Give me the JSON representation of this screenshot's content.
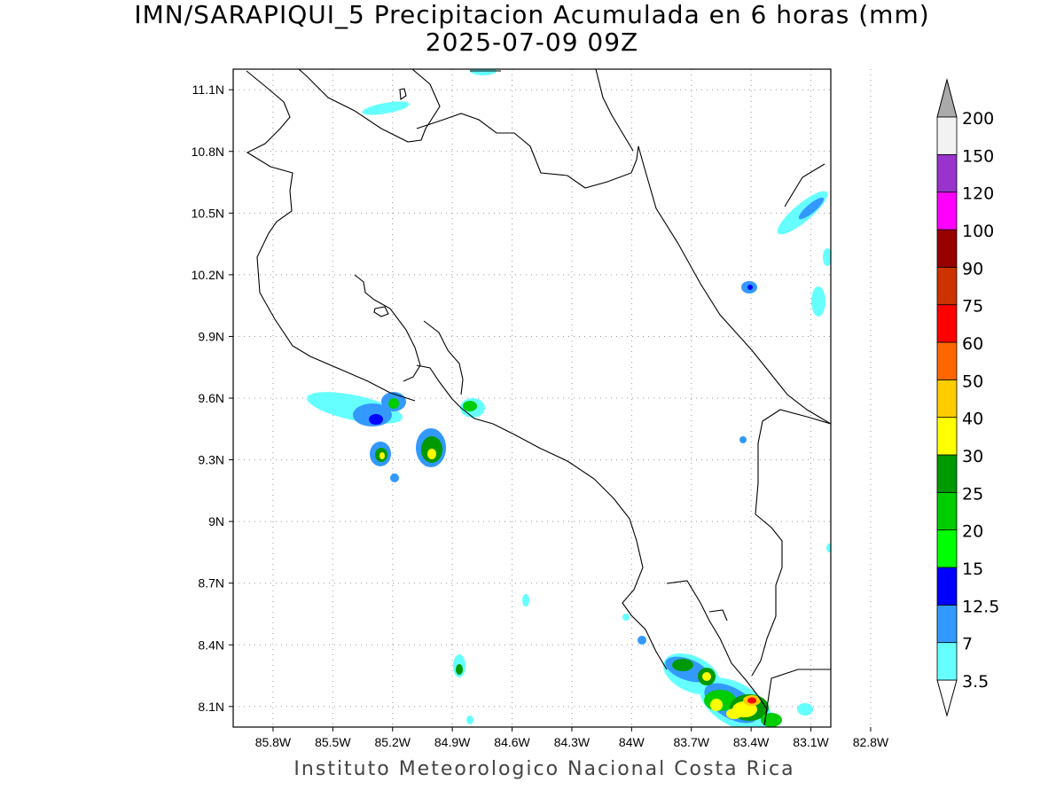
{
  "title": {
    "line1": "IMN/SARAPIQUI_5 Precipitacion Acumulada en 6 horas (mm)",
    "line2": "2025-07-09 09Z"
  },
  "footer": "Instituto Meteorologico Nacional Costa Rica",
  "map": {
    "lon_range": [
      -86.0,
      -83.0
    ],
    "lat_range": [
      8.0,
      11.2
    ],
    "lon_ticks": [
      {
        "value": -85.8,
        "label": "85.8W"
      },
      {
        "value": -85.5,
        "label": "85.5W"
      },
      {
        "value": -85.2,
        "label": "85.2W"
      },
      {
        "value": -84.9,
        "label": "84.9W"
      },
      {
        "value": -84.6,
        "label": "84.6W"
      },
      {
        "value": -84.3,
        "label": "84.3W"
      },
      {
        "value": -84.0,
        "label": "84W"
      },
      {
        "value": -83.7,
        "label": "83.7W"
      },
      {
        "value": -83.4,
        "label": "83.4W"
      },
      {
        "value": -83.1,
        "label": "83.1W"
      },
      {
        "value": -82.8,
        "label": "82.8W"
      }
    ],
    "lat_ticks": [
      {
        "value": 11.1,
        "label": "11.1N"
      },
      {
        "value": 10.8,
        "label": "10.8N"
      },
      {
        "value": 10.5,
        "label": "10.5N"
      },
      {
        "value": 10.2,
        "label": "10.2N"
      },
      {
        "value": 9.9,
        "label": "9.9N"
      },
      {
        "value": 9.6,
        "label": "9.6N"
      },
      {
        "value": 9.3,
        "label": "9.3N"
      },
      {
        "value": 9.0,
        "label": "9N"
      },
      {
        "value": 8.7,
        "label": "8.7N"
      },
      {
        "value": 8.4,
        "label": "8.4N"
      },
      {
        "value": 8.1,
        "label": "8.1N"
      }
    ],
    "grid": true
  },
  "colorbar": {
    "levels": [
      {
        "label": "3.5",
        "color": "#66ffff"
      },
      {
        "label": "7",
        "color": "#3399ff"
      },
      {
        "label": "12.5",
        "color": "#0000ff"
      },
      {
        "label": "15",
        "color": "#00ff00"
      },
      {
        "label": "20",
        "color": "#00cc00"
      },
      {
        "label": "25",
        "color": "#009900"
      },
      {
        "label": "30",
        "color": "#ffff00"
      },
      {
        "label": "40",
        "color": "#ffcc00"
      },
      {
        "label": "50",
        "color": "#ff6600"
      },
      {
        "label": "60",
        "color": "#ff0000"
      },
      {
        "label": "75",
        "color": "#cc3300"
      },
      {
        "label": "90",
        "color": "#990000"
      },
      {
        "label": "100",
        "color": "#ff00ff"
      },
      {
        "label": "120",
        "color": "#9933cc"
      },
      {
        "label": "150",
        "color": "#f2f2f2"
      },
      {
        "label": "200",
        "color": "#aaaaaa"
      }
    ]
  }
}
